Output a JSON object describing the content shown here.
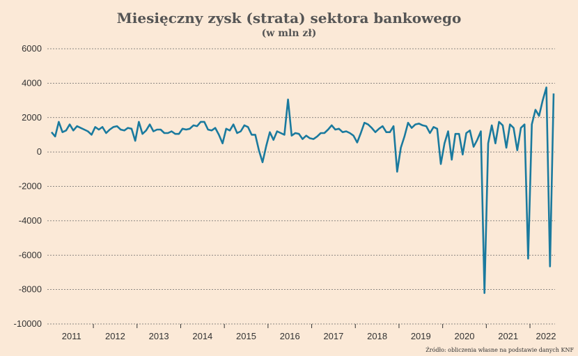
{
  "chart_data": {
    "type": "line",
    "title": "Miesięczny zysk (strata) sektora bankowego",
    "subtitle": "(w mln zł)",
    "source": "Źródło: obliczenia własne na podstawie danych KNF",
    "ylim": [
      -10000,
      6000
    ],
    "yticks": [
      "6000",
      "4000",
      "2000",
      "0",
      "-2000",
      "-4000",
      "-6000",
      "-8000",
      "-10000"
    ],
    "ytick_values": [
      6000,
      4000,
      2000,
      0,
      -2000,
      -4000,
      -6000,
      -8000,
      -10000
    ],
    "xtick_labels": [
      "2011",
      "2012",
      "2013",
      "2014",
      "2015",
      "2016",
      "2017",
      "2018",
      "2019",
      "2020",
      "2021",
      "2022"
    ],
    "grid": true,
    "line_color": "#1a7a9e",
    "series": [
      {
        "values": [
          1150,
          900,
          1750,
          1150,
          1250,
          1600,
          1250,
          1500,
          1400,
          1300,
          1200,
          1000,
          1450,
          1300,
          1450,
          1100,
          1300,
          1450,
          1500,
          1300,
          1250,
          1400,
          1350,
          650,
          1750,
          1050,
          1250,
          1600,
          1200,
          1300,
          1300,
          1100,
          1100,
          1200,
          1050,
          1050,
          1350,
          1300,
          1350,
          1550,
          1500,
          1750,
          1750,
          1300,
          1250,
          1400,
          1000,
          500,
          1350,
          1250,
          1600,
          1100,
          1200,
          1550,
          1450,
          1000,
          1000,
          100,
          -600,
          350,
          1150,
          700,
          1200,
          1100,
          1000,
          3050,
          950,
          1100,
          1050,
          750,
          950,
          800,
          750,
          900,
          1100,
          1100,
          1300,
          1550,
          1300,
          1350,
          1150,
          1200,
          1100,
          950,
          550,
          1100,
          1700,
          1600,
          1400,
          1150,
          1350,
          1500,
          1150,
          1150,
          1500,
          -1150,
          250,
          900,
          1700,
          1400,
          1600,
          1650,
          1550,
          1500,
          1100,
          1450,
          1350,
          -700,
          500,
          1200,
          -450,
          1050,
          1050,
          -150,
          1100,
          1250,
          300,
          700,
          1200,
          -8200,
          500,
          1550,
          500,
          1750,
          1550,
          250,
          1600,
          1400,
          100,
          1400,
          1600,
          -6200,
          1600,
          2450,
          2100,
          3000,
          3750,
          -6650,
          3400
        ]
      }
    ]
  }
}
